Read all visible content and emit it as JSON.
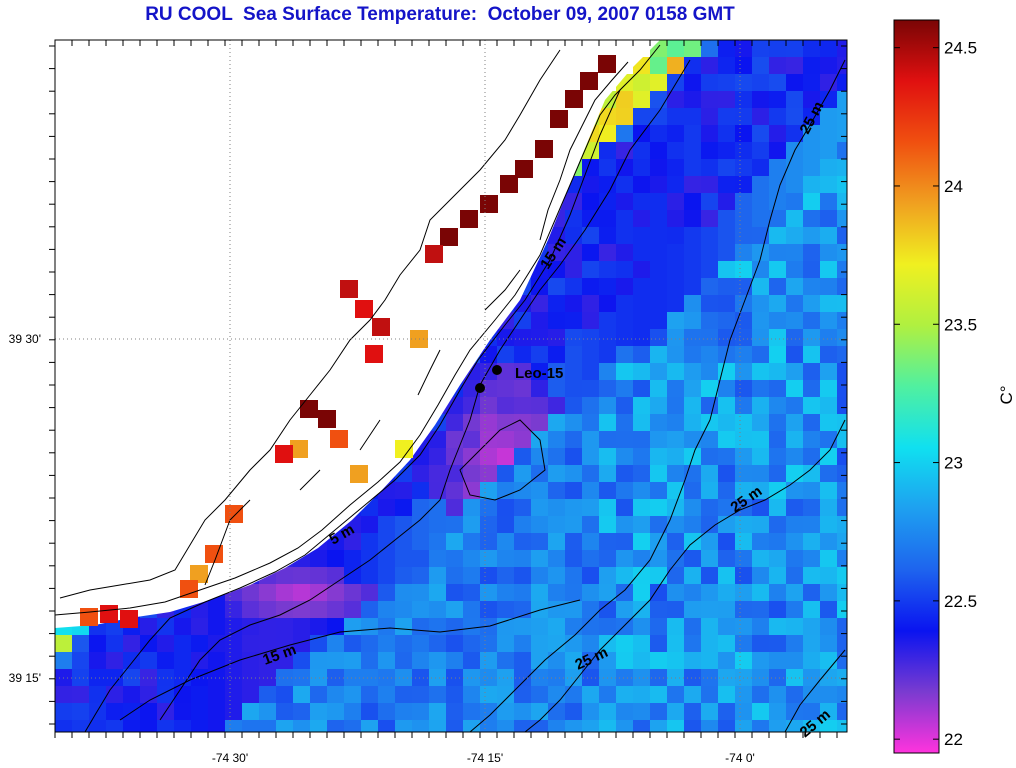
{
  "title": "RU COOL  Sea Surface Temperature:  October 09, 2007 0158 GMT",
  "map": {
    "lon_ticks": [
      "-74 30'",
      "-74 15'",
      "-74 0'"
    ],
    "lat_ticks": [
      "39 30'",
      "39 15'"
    ],
    "station": {
      "label": "Leo-15"
    },
    "contour_labels": [
      "15 m",
      "25 m",
      "5 m",
      "15 m",
      "25 m",
      "25 m",
      "25 m"
    ]
  },
  "colorbar": {
    "unit": "C°",
    "ticks": [
      "24.5",
      "24",
      "23.5",
      "23",
      "22.5",
      "22"
    ],
    "range": [
      21.95,
      24.6
    ],
    "colors": [
      "#ff33dd",
      "#7a3bd0",
      "#0a14f0",
      "#1e64ee",
      "#1ea0f0",
      "#10e0f0",
      "#50f0a0",
      "#b0f040",
      "#f0f020",
      "#f0a020",
      "#f05010",
      "#e01010",
      "#7a0505"
    ]
  }
}
